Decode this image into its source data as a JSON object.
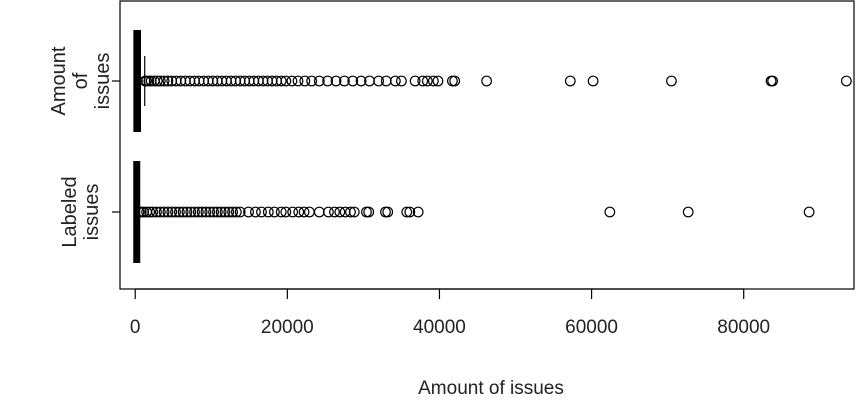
{
  "chart_data": {
    "type": "boxplot",
    "orientation": "horizontal",
    "xlabel": "Amount of issues",
    "xlim": [
      -2000,
      94500
    ],
    "x_ticks": [
      0,
      20000,
      40000,
      60000,
      80000
    ],
    "x_tick_labels": [
      "0",
      "20000",
      "40000",
      "60000",
      "80000"
    ],
    "categories": [
      {
        "label_lines": [
          "Amount",
          "of",
          "issues"
        ]
      },
      {
        "label_lines": [
          "Labeled",
          "issues"
        ]
      }
    ],
    "series": [
      {
        "box": {
          "min": 0,
          "q1": 20,
          "median": 120,
          "q3": 500,
          "max": 1250
        },
        "outliers": [
          1300,
          1500,
          1800,
          2100,
          2500,
          2900,
          3300,
          3800,
          4300,
          4800,
          5400,
          6000,
          6600,
          7200,
          7800,
          8400,
          9000,
          9600,
          10200,
          10800,
          11400,
          12000,
          12600,
          13200,
          13800,
          14400,
          15000,
          15600,
          16200,
          16800,
          17400,
          18000,
          18600,
          19200,
          19800,
          20600,
          21400,
          22300,
          23200,
          24200,
          25300,
          26400,
          27500,
          28600,
          29700,
          30800,
          32000,
          33000,
          34200,
          35000,
          36800,
          37800,
          38400,
          39200,
          39800,
          41700,
          42000,
          46200,
          57200,
          60200,
          70500,
          83600,
          83800,
          93500
        ]
      },
      {
        "box": {
          "min": 0,
          "q1": 5,
          "median": 40,
          "q3": 180,
          "max": 450
        },
        "outliers": [
          500,
          800,
          1100,
          1500,
          1900,
          2300,
          2800,
          3300,
          3800,
          4300,
          4800,
          5300,
          5800,
          6300,
          6800,
          7300,
          7800,
          8300,
          8800,
          9300,
          9800,
          10300,
          10800,
          11300,
          11800,
          12300,
          12800,
          13300,
          13800,
          14900,
          15800,
          16600,
          17500,
          18300,
          19200,
          19800,
          20700,
          21500,
          22200,
          22900,
          24200,
          25400,
          26200,
          26900,
          27600,
          28300,
          28800,
          30400,
          30700,
          32900,
          33200,
          35700,
          36100,
          37200,
          62400,
          72700,
          88600
        ]
      }
    ]
  }
}
